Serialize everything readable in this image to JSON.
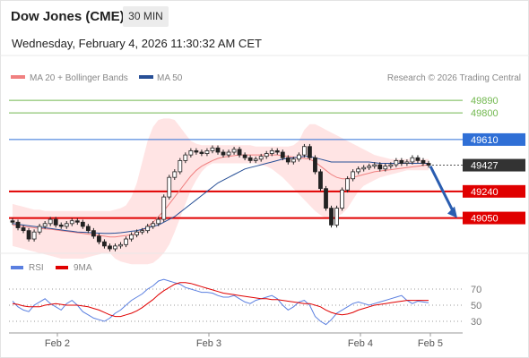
{
  "header": {
    "title": "Dow Jones (CME)",
    "timeframe": "30 MIN"
  },
  "datetime": "Wednesday, February 4, 2026 11:30:32 AM CET",
  "colors": {
    "ma20": "#f08080",
    "ma50": "#274f96",
    "band": "#ffd9d9",
    "resistance": "#2f6fd6",
    "support": "#e00000",
    "target_green": "#72b84f",
    "current": "#333333",
    "rsi": "#5a7fe0",
    "rsi_ma": "#e00000",
    "arrow": "#2a5db0"
  },
  "legend": {
    "ma20": "MA 20 + Bollinger Bands",
    "ma50": "MA 50",
    "source": "Research © 2026 Trading Central"
  },
  "rsi_legend": {
    "rsi": "RSI",
    "ma": "9MA"
  },
  "chart_data": {
    "type": "candlestick",
    "price_axis": {
      "min": 48830,
      "max": 49980
    },
    "levels": [
      {
        "label": "49890",
        "value": 49890,
        "kind": "target"
      },
      {
        "label": "49800",
        "value": 49800,
        "kind": "target"
      },
      {
        "label": "49610",
        "value": 49610,
        "kind": "resistance"
      },
      {
        "label": "49427",
        "value": 49427,
        "kind": "current"
      },
      {
        "label": "49240",
        "value": 49240,
        "kind": "support"
      },
      {
        "label": "49050",
        "value": 49050,
        "kind": "support"
      }
    ],
    "x_labels": [
      "Feb 2",
      "Feb 3",
      "Feb 4",
      "Feb 5"
    ],
    "closes": [
      49020,
      48980,
      48960,
      48900,
      48950,
      48990,
      49010,
      49040,
      49000,
      48990,
      49010,
      49030,
      49020,
      48990,
      48960,
      48920,
      48880,
      48850,
      48830,
      48850,
      48860,
      48900,
      48930,
      48950,
      48960,
      48990,
      49010,
      49040,
      49200,
      49340,
      49380,
      49460,
      49500,
      49530,
      49520,
      49510,
      49530,
      49550,
      49520,
      49500,
      49520,
      49540,
      49500,
      49480,
      49460,
      49470,
      49490,
      49510,
      49530,
      49520,
      49480,
      49450,
      49470,
      49500,
      49560,
      49480,
      49380,
      49260,
      49120,
      49000,
      49120,
      49250,
      49330,
      49380,
      49400,
      49410,
      49420,
      49430,
      49400,
      49420,
      49430,
      49460,
      49440,
      49450,
      49480,
      49460,
      49440,
      49427
    ],
    "ma20": [
      49000,
      48995,
      48990,
      48985,
      48980,
      48975,
      48972,
      48970,
      48965,
      48960,
      48955,
      48950,
      48945,
      48940,
      48935,
      48930,
      48925,
      48920,
      48915,
      48915,
      48920,
      48925,
      48930,
      48940,
      48960,
      48990,
      49020,
      49060,
      49100,
      49150,
      49200,
      49250,
      49300,
      49350,
      49390,
      49420,
      49440,
      49460,
      49475,
      49485,
      49490,
      49495,
      49500,
      49500,
      49500,
      49500,
      49500,
      49500,
      49500,
      49500,
      49495,
      49490,
      49485,
      49480,
      49475,
      49470,
      49450,
      49420,
      49390,
      49360,
      49340,
      49330,
      49330,
      49340,
      49350,
      49360,
      49370,
      49380,
      49385,
      49390,
      49395,
      49400,
      49405,
      49410,
      49415,
      49420,
      49425,
      49430
    ],
    "ma50": [
      49010,
      49005,
      49000,
      48995,
      48990,
      48985,
      48980,
      48975,
      48970,
      48965,
      48960,
      48955,
      48950,
      48948,
      48946,
      48944,
      48942,
      48940,
      48940,
      48942,
      48945,
      48950,
      48955,
      48960,
      48970,
      48980,
      48990,
      49000,
      49020,
      49040,
      49060,
      49090,
      49120,
      49150,
      49180,
      49210,
      49240,
      49270,
      49300,
      49320,
      49340,
      49360,
      49380,
      49400,
      49410,
      49420,
      49430,
      49440,
      49450,
      49460,
      49470,
      49475,
      49480,
      49485,
      49490,
      49490,
      49480,
      49470,
      49460,
      49450,
      49450,
      49450,
      49450,
      49450,
      49450,
      49450,
      49450,
      49445,
      49440,
      49440,
      49440,
      49440,
      49440,
      49440,
      49440,
      49440,
      49440,
      49440
    ],
    "band_upper": [
      49150,
      49140,
      49130,
      49120,
      49110,
      49110,
      49100,
      49100,
      49100,
      49100,
      49100,
      49100,
      49100,
      49100,
      49100,
      49100,
      49100,
      49100,
      49100,
      49110,
      49120,
      49140,
      49200,
      49300,
      49450,
      49600,
      49700,
      49750,
      49760,
      49760,
      49750,
      49700,
      49650,
      49600,
      49580,
      49570,
      49570,
      49570,
      49570,
      49570,
      49570,
      49570,
      49570,
      49570,
      49570,
      49560,
      49560,
      49560,
      49560,
      49560,
      49560,
      49560,
      49570,
      49600,
      49680,
      49720,
      49720,
      49700,
      49680,
      49660,
      49640,
      49620,
      49600,
      49580,
      49560,
      49540,
      49520,
      49500,
      49490,
      49480,
      49470,
      49470,
      49470,
      49470,
      49470,
      49470,
      49470,
      49470
    ],
    "band_lower": [
      48850,
      48840,
      48830,
      48820,
      48810,
      48800,
      48790,
      48780,
      48770,
      48760,
      48760,
      48760,
      48760,
      48760,
      48770,
      48780,
      48790,
      48800,
      48800,
      48760,
      48740,
      48730,
      48720,
      48720,
      48720,
      48720,
      48730,
      48760,
      48800,
      48860,
      48950,
      49050,
      49150,
      49250,
      49320,
      49380,
      49420,
      49440,
      49440,
      49440,
      49440,
      49440,
      49440,
      49440,
      49440,
      49440,
      49430,
      49420,
      49400,
      49370,
      49340,
      49300,
      49260,
      49220,
      49180,
      49140,
      49100,
      49070,
      49050,
      49050,
      49060,
      49080,
      49120,
      49180,
      49240,
      49280,
      49300,
      49320,
      49340,
      49350,
      49360,
      49370,
      49380,
      49390,
      49390,
      49390,
      49390,
      49390
    ],
    "projection": {
      "from": 49420,
      "to": 49050
    },
    "rsi": {
      "axis": [
        70,
        50,
        30
      ],
      "values": [
        55,
        48,
        44,
        42,
        50,
        54,
        58,
        52,
        48,
        44,
        52,
        56,
        50,
        42,
        38,
        34,
        32,
        30,
        34,
        40,
        44,
        50,
        56,
        60,
        64,
        70,
        74,
        80,
        82,
        80,
        78,
        76,
        72,
        70,
        68,
        66,
        66,
        65,
        62,
        60,
        60,
        62,
        58,
        54,
        52,
        56,
        58,
        60,
        62,
        58,
        50,
        44,
        48,
        54,
        56,
        50,
        36,
        30,
        26,
        32,
        40,
        44,
        48,
        52,
        54,
        52,
        50,
        52,
        54,
        56,
        58,
        60,
        62,
        56,
        52,
        55,
        54,
        53
      ],
      "ma": [
        52,
        51,
        49,
        48,
        48,
        48,
        50,
        51,
        52,
        51,
        50,
        50,
        50,
        49,
        48,
        46,
        44,
        41,
        38,
        36,
        36,
        38,
        40,
        43,
        47,
        52,
        57,
        63,
        68,
        72,
        76,
        78,
        78,
        77,
        75,
        73,
        71,
        69,
        67,
        65,
        64,
        63,
        62,
        61,
        60,
        59,
        58,
        58,
        57,
        57,
        56,
        55,
        54,
        53,
        52,
        52,
        50,
        48,
        44,
        41,
        39,
        38,
        39,
        41,
        44,
        46,
        48,
        50,
        51,
        52,
        53,
        54,
        55,
        56,
        56,
        56,
        56,
        56
      ]
    }
  }
}
